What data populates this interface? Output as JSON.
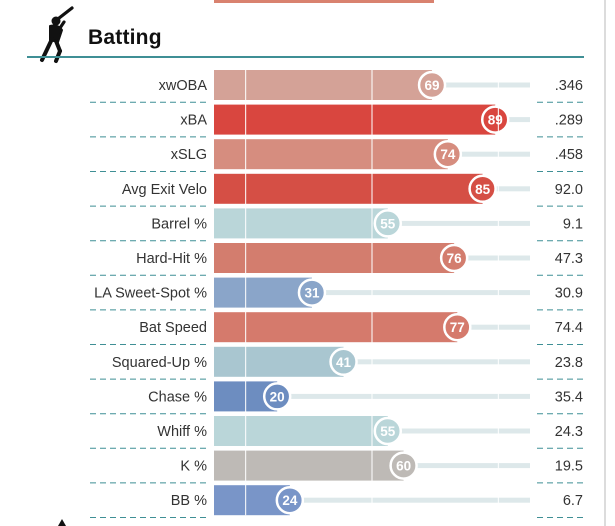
{
  "section": {
    "title": "Batting",
    "icon": "baseball-batter-icon"
  },
  "chart_data": {
    "type": "bar",
    "orientation": "horizontal",
    "xlim": [
      0,
      100
    ],
    "categories": [
      "xwOBA",
      "xBA",
      "xSLG",
      "Avg Exit Velo",
      "Barrel %",
      "Hard-Hit %",
      "LA Sweet-Spot %",
      "Bat Speed",
      "Squared-Up %",
      "Chase %",
      "Whiff %",
      "K %",
      "BB %"
    ],
    "percentiles": [
      69,
      89,
      74,
      85,
      55,
      76,
      31,
      77,
      41,
      20,
      55,
      60,
      24
    ],
    "stat_values": [
      ".346",
      ".289",
      ".458",
      "92.0",
      "9.1",
      "47.3",
      "30.9",
      "74.4",
      "23.8",
      "35.4",
      "24.3",
      "19.5",
      "6.7"
    ],
    "bar_colors": [
      "#d4a297",
      "#d9463f",
      "#d68d7f",
      "#d54f45",
      "#bad6d9",
      "#d37d6e",
      "#8aa5c9",
      "#d57a6c",
      "#a9c6d0",
      "#6d8dc0",
      "#bad6d9",
      "#bebab6",
      "#7995c8"
    ],
    "track_color": "#dde8ea",
    "grid": true
  }
}
